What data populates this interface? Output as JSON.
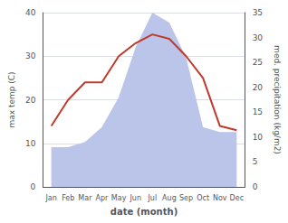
{
  "chart_data": {
    "type": "line",
    "categories": [
      "Jan",
      "Feb",
      "Mar",
      "Apr",
      "May",
      "Jun",
      "Jul",
      "Aug",
      "Sep",
      "Oct",
      "Nov",
      "Dec"
    ],
    "xlabel": "date (month)",
    "ylabel": "max temp (C)",
    "y2label": "med. precipitation (kg/m2)",
    "ylim": [
      0,
      40
    ],
    "yticks": [
      0,
      10,
      20,
      30,
      40
    ],
    "y2lim": [
      0,
      35
    ],
    "y2ticks": [
      0,
      5,
      10,
      15,
      20,
      25,
      30,
      35
    ],
    "grid": true,
    "series": [
      {
        "type": "area",
        "color": "#bbc5ea",
        "axis": "y2",
        "values": [
          8,
          8,
          9,
          12,
          18,
          28,
          35,
          33,
          26,
          12,
          11,
          11
        ]
      },
      {
        "type": "line",
        "color": "#c0392b",
        "values": [
          14,
          20,
          24,
          24,
          30,
          33,
          35,
          34,
          30,
          25,
          14,
          13
        ]
      }
    ]
  }
}
